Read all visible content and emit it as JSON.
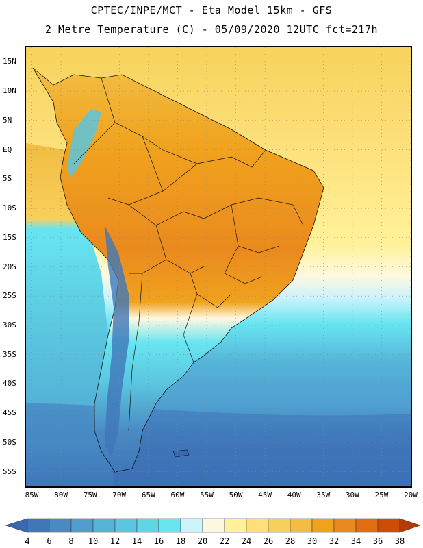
{
  "header": {
    "title_line1": "CPTEC/INPE/MCT -  Eta Model 15km - GFS",
    "title_line2": "2 Metre Temperature (C) - 05/09/2020 12UTC fct=217h"
  },
  "map": {
    "lat_labels": [
      "15N",
      "10N",
      "5N",
      "EQ",
      "5S",
      "10S",
      "15S",
      "20S",
      "25S",
      "30S",
      "35S",
      "40S",
      "45S",
      "50S",
      "55S"
    ],
    "lon_labels": [
      "85W",
      "80W",
      "75W",
      "70W",
      "65W",
      "60W",
      "55W",
      "50W",
      "45W",
      "40W",
      "35W",
      "30W",
      "25W",
      "20W"
    ],
    "lat_range": [
      17.5,
      -57.5
    ],
    "lon_range": [
      -86,
      -20
    ]
  },
  "colorbar": {
    "ticks": [
      "4",
      "6",
      "8",
      "10",
      "12",
      "14",
      "16",
      "18",
      "20",
      "22",
      "24",
      "26",
      "28",
      "30",
      "32",
      "34",
      "36",
      "38"
    ],
    "colors": [
      "#3a67b0",
      "#3f77b9",
      "#4a8ac4",
      "#4f9ecf",
      "#55b3d8",
      "#5bc6df",
      "#5fd6e6",
      "#67e5f1",
      "#cdf3fb",
      "#fff8e0",
      "#fff29a",
      "#fde07a",
      "#f7cf5c",
      "#f2bd42",
      "#f0a21d",
      "#ea8a1e",
      "#e06e10",
      "#cf4c06",
      "#b63a05"
    ]
  }
}
